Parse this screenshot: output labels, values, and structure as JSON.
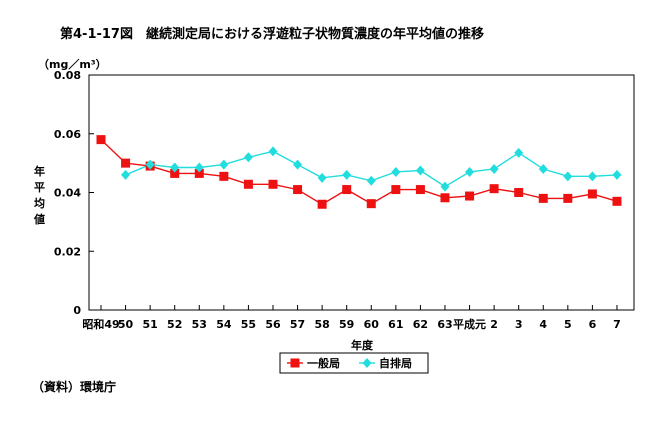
{
  "chart_data": {
    "type": "line",
    "title": "第4-1-17図　継続測定局における浮遊粒子状物質濃度の年平均値の推移",
    "unit_label": "（mg／m³）",
    "xlabel": "年度",
    "ylabel": "年平均値",
    "ylim": [
      0,
      0.08
    ],
    "yticks": [
      "0.08",
      "0.06",
      "0.04",
      "0.02",
      "0"
    ],
    "ytick_values": [
      0.08,
      0.06,
      0.04,
      0.02,
      0
    ],
    "categories": [
      "昭和49",
      "50",
      "51",
      "52",
      "53",
      "54",
      "55",
      "56",
      "57",
      "58",
      "59",
      "60",
      "61",
      "62",
      "63",
      "平成元",
      "2",
      "3",
      "4",
      "5",
      "6",
      "7"
    ],
    "series": [
      {
        "name": "一般局",
        "color": "#ee1111",
        "marker": "square",
        "values": [
          0.058,
          0.05,
          0.049,
          0.0465,
          0.0465,
          0.0455,
          0.0428,
          0.0428,
          0.041,
          0.036,
          0.041,
          0.0362,
          0.041,
          0.041,
          0.0382,
          0.0388,
          0.0413,
          0.04,
          0.038,
          0.038,
          0.0395,
          0.037
        ]
      },
      {
        "name": "自排局",
        "color": "#22dddd",
        "marker": "diamond",
        "values": [
          null,
          0.046,
          0.0495,
          0.0485,
          0.0485,
          0.0495,
          0.052,
          0.054,
          0.0495,
          0.045,
          0.046,
          0.044,
          0.047,
          0.0475,
          0.042,
          0.047,
          0.048,
          0.0535,
          0.048,
          0.0455,
          0.0455,
          0.046
        ]
      }
    ],
    "legend_position": "bottom-center",
    "grid": false
  },
  "source_note": "（資料）環境庁"
}
